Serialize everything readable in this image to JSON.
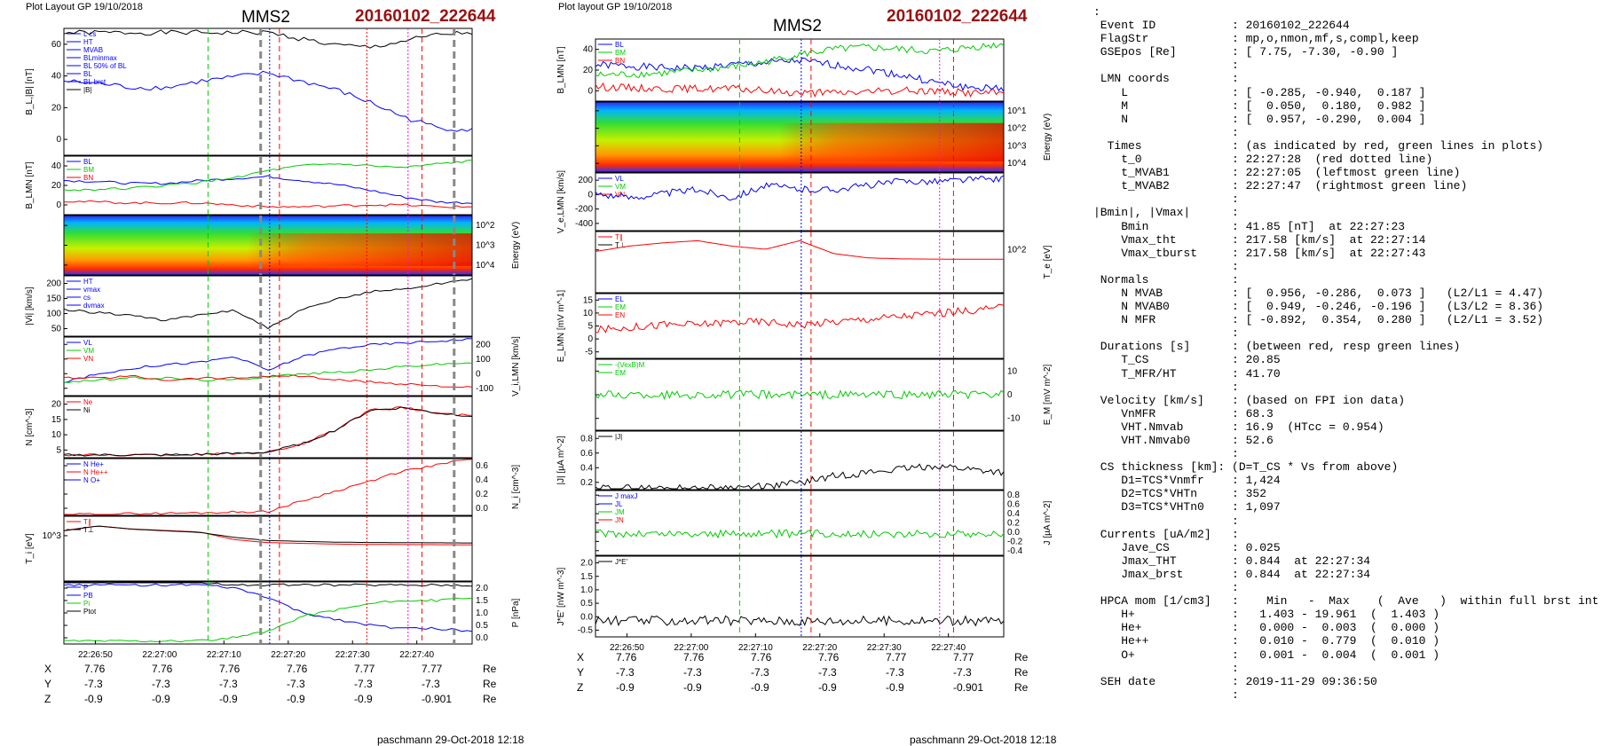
{
  "header_left": "Plot Layout GP 19/10/2018",
  "header_mid": "Plot layout GP 19/10/2018",
  "spacecraft": "MMS2",
  "event_label": "20160102_222644",
  "footer_left": "paschmann 29-Oct-2018 12:18",
  "footer_mid": "paschmann 29-Oct-2018 12:18",
  "time_ticks": [
    "22:26:50",
    "22:27:00",
    "22:27:10",
    "22:27:20",
    "22:27:30",
    "22:27:40"
  ],
  "coords": {
    "x_label": "X",
    "y_label": "Y",
    "z_label": "Z",
    "unit": "Re",
    "x": [
      "7.76",
      "7.76",
      "7.76",
      "7.76",
      "7.77",
      "7.77"
    ],
    "y": [
      "-7.3",
      "-7.3",
      "-7.3",
      "-7.3",
      "-7.3",
      "-7.3"
    ],
    "z": [
      "-0.9",
      "-0.9",
      "-0.9",
      "-0.9",
      "-0.9",
      "-0.901"
    ]
  },
  "colors": {
    "blue": "#0000ff",
    "green": "#00cc00",
    "red": "#ff0000",
    "magenta": "#ff00ff",
    "gray": "#888888",
    "dark_red": "#9a1010"
  },
  "chart_data": [
    {
      "type": "line",
      "column": "left",
      "ylabel": "B_L,|B| [nT]",
      "ylim": [
        0,
        60
      ],
      "ticks": [
        "0",
        "20",
        "40",
        "60"
      ],
      "legend": [
        "L cs",
        "HT",
        "MVAB",
        "BLminmax",
        "BL 50% of BL",
        "BL",
        "BL brst",
        "|B|"
      ],
      "series": [
        {
          "name": "|B|",
          "values": [
            58,
            58,
            58,
            58,
            58,
            58,
            58,
            55,
            52,
            51,
            54,
            57,
            58
          ]
        },
        {
          "name": "BL",
          "values": [
            35,
            34,
            32,
            32,
            35,
            37,
            39,
            35,
            31,
            25,
            18,
            13,
            12
          ]
        }
      ]
    },
    {
      "type": "line",
      "column": "left",
      "ylabel": "B_LMN [nT]",
      "ylim": [
        0,
        60
      ],
      "ticks": [
        "0",
        "20",
        "40"
      ],
      "legend": [
        "BL",
        "BM",
        "BN"
      ],
      "series": [
        {
          "name": "BL",
          "values": [
            35,
            34,
            32,
            32,
            35,
            37,
            39,
            35,
            31,
            25,
            18,
            13,
            12
          ]
        },
        {
          "name": "BM",
          "values": [
            25,
            26,
            27,
            30,
            33,
            38,
            45,
            50,
            52,
            50,
            48,
            52,
            55
          ]
        },
        {
          "name": "BN",
          "values": [
            14,
            13,
            12,
            12,
            12,
            10,
            8,
            8,
            9,
            10,
            10,
            8,
            8
          ]
        }
      ]
    },
    {
      "type": "heatmap",
      "column": "left",
      "ylabel": "Energy (eV)",
      "ticks": [
        "10^4",
        "10^3",
        "10^2"
      ]
    },
    {
      "type": "line",
      "column": "left",
      "ylabel": "|Vi| [km/s]",
      "ylim": [
        0,
        230
      ],
      "ticks": [
        "50",
        "100",
        "150",
        "200"
      ],
      "legend": [
        "HT",
        "vmax",
        "cs",
        "dvmax"
      ],
      "series": [
        {
          "name": "|Vi|",
          "values": [
            100,
            90,
            80,
            60,
            80,
            100,
            30,
            100,
            140,
            170,
            180,
            200,
            220
          ]
        }
      ]
    },
    {
      "type": "line",
      "column": "left",
      "ylabel": "V_i,LMN [km/s]",
      "ylim": [
        -100,
        200
      ],
      "ticks": [
        "-100",
        "0",
        "100",
        "200"
      ],
      "legend": [
        "VL",
        "VM",
        "VN"
      ],
      "series": [
        {
          "name": "VL",
          "values": [
            -30,
            10,
            40,
            60,
            70,
            100,
            30,
            100,
            140,
            160,
            170,
            180,
            190
          ]
        },
        {
          "name": "VM",
          "values": [
            -30,
            -20,
            -10,
            -10,
            -20,
            -20,
            0,
            10,
            20,
            30,
            50,
            60,
            70
          ]
        },
        {
          "name": "VN",
          "values": [
            -10,
            -10,
            0,
            -20,
            -10,
            -10,
            0,
            0,
            -20,
            -30,
            -40,
            -50,
            -60
          ]
        }
      ]
    },
    {
      "type": "line",
      "column": "left",
      "ylabel": "N [cm^-3]",
      "ylim": [
        0,
        22
      ],
      "ticks": [
        "5",
        "10",
        "15",
        "20"
      ],
      "legend": [
        "Ne",
        "Ni"
      ],
      "series": [
        {
          "name": "Ne",
          "values": [
            1,
            1,
            1,
            1,
            1.2,
            1.5,
            2,
            5,
            10,
            17,
            18,
            16,
            15
          ]
        },
        {
          "name": "Ni",
          "values": [
            1,
            1,
            1,
            1,
            1.2,
            1.5,
            2,
            5,
            10,
            17,
            18,
            16,
            15
          ]
        }
      ]
    },
    {
      "type": "line",
      "column": "left",
      "ylabel": "N_i [cm^-3]",
      "ylim": [
        0,
        0.7
      ],
      "ticks": [
        "0.0",
        "0.2",
        "0.4",
        "0.6"
      ],
      "legend": [
        "N He+",
        "N He++",
        "N O+"
      ],
      "series": [
        {
          "name": "N He++",
          "values": [
            0.01,
            0.02,
            0.03,
            0.05,
            0.3,
            0.55,
            0.7
          ]
        }
      ]
    },
    {
      "type": "line",
      "column": "left",
      "ylabel": "T_i [eV]",
      "ticks": [
        "10^3"
      ],
      "legend": [
        "T∥",
        "T⊥"
      ],
      "series": [
        {
          "name": "T∥",
          "values": [
            1200,
            1500,
            1300,
            1200,
            1100,
            600,
            400,
            350,
            300,
            280,
            270,
            260,
            250
          ]
        },
        {
          "name": "T⊥",
          "values": [
            1100,
            1400,
            1200,
            1100,
            1000,
            700,
            500,
            450,
            400,
            380,
            370,
            360,
            350
          ]
        }
      ]
    },
    {
      "type": "line",
      "column": "left",
      "ylabel": "P [nPa]",
      "ylim": [
        0,
        2.0
      ],
      "ticks": [
        "0.0",
        "0.5",
        "1.0",
        "1.5",
        "2.0"
      ],
      "legend": [
        "P",
        "PB",
        "Pi",
        "Ptot"
      ],
      "series": [
        {
          "name": "Ptot",
          "values": [
            2.0,
            2.0,
            2.0,
            2.0,
            2.0,
            1.9,
            1.9,
            1.9,
            1.9,
            1.9,
            1.9,
            1.9,
            1.9
          ]
        },
        {
          "name": "PB",
          "values": [
            1.9,
            1.9,
            1.9,
            1.9,
            1.9,
            1.8,
            1.5,
            1.0,
            0.8,
            0.6,
            0.5,
            0.5,
            0.4
          ]
        },
        {
          "name": "Pi",
          "values": [
            0.1,
            0.1,
            0.1,
            0.1,
            0.1,
            0.2,
            0.4,
            0.9,
            1.1,
            1.3,
            1.4,
            1.4,
            1.5
          ]
        }
      ]
    },
    {
      "type": "line",
      "column": "mid",
      "ylabel": "B_LMN [nT]",
      "ylim": [
        0,
        60
      ],
      "ticks": [
        "0",
        "20",
        "40"
      ],
      "legend": [
        "BL",
        "BM",
        "BN"
      ],
      "series": [
        {
          "name": "BL",
          "values": [
            35,
            34,
            32,
            32,
            35,
            37,
            39,
            35,
            31,
            25,
            18,
            13,
            12
          ]
        },
        {
          "name": "BM",
          "values": [
            25,
            26,
            27,
            30,
            33,
            38,
            45,
            50,
            52,
            50,
            48,
            52,
            55
          ]
        },
        {
          "name": "BN",
          "values": [
            14,
            13,
            12,
            12,
            12,
            10,
            8,
            8,
            9,
            10,
            10,
            8,
            8
          ]
        }
      ]
    },
    {
      "type": "heatmap",
      "column": "mid",
      "ylabel": "Energy (eV)",
      "ticks": [
        "10^4",
        "10^3",
        "10^2",
        "10^1"
      ]
    },
    {
      "type": "line",
      "column": "mid",
      "ylabel": "V_e,LMN [km/s]",
      "ylim": [
        -400,
        300
      ],
      "ticks": [
        "-400",
        "-200",
        "0",
        "200"
      ],
      "legend": [
        "VL",
        "VM",
        "VN"
      ],
      "series": [
        {
          "name": "VL",
          "values": [
            50,
            0,
            50,
            100,
            0,
            150,
            100,
            100,
            150,
            200,
            200,
            220,
            230
          ]
        }
      ]
    },
    {
      "type": "line",
      "column": "mid",
      "ylabel": "T_e [eV]",
      "ticks": [
        "10^2"
      ],
      "legend": [
        "T∥",
        "T⊥"
      ],
      "series": [
        {
          "name": "T∥",
          "values": [
            100,
            150,
            180,
            200,
            150,
            120,
            200,
            80,
            40,
            30,
            28,
            27,
            26
          ]
        }
      ]
    },
    {
      "type": "line",
      "column": "mid",
      "ylabel": "E_LMN [mV m^-1]",
      "ylim": [
        -7,
        16
      ],
      "ticks": [
        "-5",
        "0",
        "5",
        "10",
        "15"
      ],
      "legend": [
        "EL",
        "EM",
        "EN"
      ],
      "series": [
        {
          "name": "EN",
          "values": [
            3,
            4,
            5,
            5,
            6,
            6,
            5,
            6,
            7,
            8,
            9,
            10,
            11
          ]
        }
      ]
    },
    {
      "type": "line",
      "column": "mid",
      "ylabel": "E_M [mV m^-2]",
      "ylim": [
        -15,
        15
      ],
      "ticks": [
        "-10",
        "0",
        "10"
      ],
      "legend": [
        "-(VexB)M",
        "EM"
      ],
      "series": [
        {
          "name": "EM",
          "values": [
            0,
            0,
            0,
            0,
            0,
            0,
            0,
            0,
            0,
            0,
            0,
            0,
            0
          ]
        }
      ]
    },
    {
      "type": "line",
      "column": "mid",
      "ylabel": "|J| [µA m^-2]",
      "ylim": [
        0,
        0.85
      ],
      "ticks": [
        "0.2",
        "0.4",
        "0.6",
        "0.8"
      ],
      "legend": [
        "|J|"
      ],
      "series": [
        {
          "name": "|J|",
          "values": [
            0.02,
            0.02,
            0.02,
            0.02,
            0.03,
            0.05,
            0.1,
            0.2,
            0.25,
            0.3,
            0.35,
            0.3,
            0.25
          ]
        }
      ]
    },
    {
      "type": "line",
      "column": "mid",
      "ylabel": "J [µA m^-2]",
      "ylim": [
        -0.4,
        0.8
      ],
      "ticks": [
        "-0.4",
        "-0.2",
        "0.0",
        "0.2",
        "0.4",
        "0.6",
        "0.8"
      ],
      "legend": [
        "J maxJ",
        "JL",
        "JM",
        "JN"
      ],
      "series": [
        {
          "name": "JM",
          "values": [
            0,
            0,
            0,
            0,
            0,
            0,
            0,
            0,
            0,
            0,
            0,
            0,
            0
          ]
        }
      ]
    },
    {
      "type": "line",
      "column": "mid",
      "ylabel": "J*E' [nW m^-3]",
      "ylim": [
        -0.5,
        2.0
      ],
      "ticks": [
        "-0.5",
        "0.0",
        "0.5",
        "1.0",
        "1.5",
        "2.0"
      ],
      "legend": [
        "J*E'"
      ],
      "series": [
        {
          "name": "J*E'",
          "values": [
            0,
            0,
            0,
            0,
            0,
            0,
            0,
            0,
            0,
            0,
            0,
            0,
            0
          ]
        }
      ]
    }
  ],
  "info_rows": [
    ":",
    " Event ID           : 20160102_222644",
    " FlagStr            : mp,o,nmon,mf,s,compl,keep",
    " GSEpos [Re]        : [ 7.75, -7.30, -0.90 ]",
    "                    :",
    " LMN coords         :",
    "    L               : [ -0.285, -0.940,  0.187 ]",
    "    M               : [  0.050,  0.180,  0.982 ]",
    "    N               : [  0.957, -0.290,  0.004 ]",
    "                    :",
    "  Times             : (as indicated by red, green lines in plots)",
    "    t_0             : 22:27:28  (red dotted line)",
    "    t_MVAB1         : 22:27:05  (leftmost green line)",
    "    t_MVAB2         : 22:27:47  (rightmost green line)",
    "                    :",
    "|Bmin|, |Vmax|      :",
    "    Bmin            : 41.85 [nT]  at 22:27:23",
    "    Vmax_tht        : 217.58 [km/s]  at 22:27:14",
    "    Vmax_tburst     : 217.58 [km/s]  at 22:27:43",
    "                    :",
    " Normals            :",
    "    N MVAB          : [  0.956, -0.286,  0.073 ]   (L2/L1 = 4.47)",
    "    N MVAB0         : [  0.949, -0.246, -0.196 ]   (L3/L2 = 8.36)",
    "    N MFR           : [ -0.892,  0.354,  0.280 ]   (L2/L1 = 3.52)",
    "                    :",
    " Durations [s]      : (between red, resp green lines)",
    "    T_CS            : 20.85",
    "    T_MFR/HT        : 41.70",
    "                    :",
    " Velocity [km/s]    : (based on FPI ion data)",
    "    VnMFR           : 68.3",
    "    VHT.Nmvab       : 16.9  (HTcc = 0.954)",
    "    VHT.Nmvab0      : 52.6",
    "                    :",
    " CS thickness [km]: (D=T_CS * Vs from above)",
    "    D1=TCS*Vnmfr    : 1,424",
    "    D2=TCS*VHTn     : 352",
    "    D3=TCS*VHTn0    : 1,097",
    "                    :",
    " Currents [uA/m2]   :",
    "    Jave_CS         : 0.025",
    "    Jmax_THT        : 0.844  at 22:27:34",
    "    Jmax_brst       : 0.844  at 22:27:34",
    "                    :",
    " HPCA mom [1/cm3]   :    Min   -  Max    (  Ave   )  within full brst int",
    "    H+              :   1.403 - 19.961  (  1.403 )",
    "    He+             :   0.000 -  0.003  (  0.000 )",
    "    He++            :   0.010 -  0.779  (  0.010 )",
    "    O+              :   0.001 -  0.004  (  0.001 )",
    "                    :",
    " SEH date           : 2019-11-29 09:36:50",
    "                    :"
  ]
}
